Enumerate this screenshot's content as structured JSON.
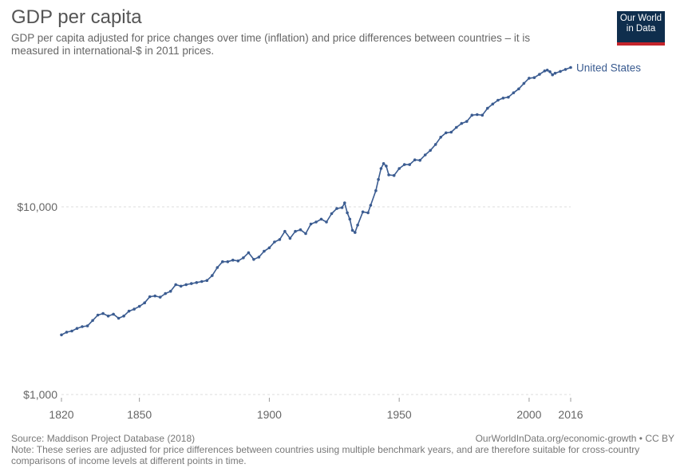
{
  "header": {
    "title": "GDP per capita",
    "subtitle": "GDP per capita adjusted for price changes over time (inflation) and price differences between countries – it is measured in international-$ in 2011 prices."
  },
  "logo": {
    "line1": "Our World",
    "line2": "in Data",
    "bg_color": "#0f2e4d",
    "accent_color": "#c4242b"
  },
  "footer": {
    "source": "Source: Maddison Project Database (2018)",
    "link": "OurWorldInData.org/economic-growth • CC BY",
    "note": "Note: These series are adjusted for price differences between countries using multiple benchmark years, and are therefore suitable for cross-country comparisons of income levels at different points in time."
  },
  "chart_data": {
    "type": "line",
    "title": "GDP per capita",
    "xlabel": "",
    "ylabel": "",
    "yscale": "log",
    "xlim": [
      1820,
      2016
    ],
    "ylim": [
      1000,
      60000
    ],
    "x_ticks": [
      1820,
      1850,
      1900,
      1950,
      2000,
      2016
    ],
    "x_tick_labels": [
      "1820",
      "1850",
      "1900",
      "1950",
      "2000",
      "2016"
    ],
    "y_ticks": [
      1000,
      10000
    ],
    "y_tick_labels": [
      "$1,000",
      "$10,000"
    ],
    "grid": "horizontal-dashed",
    "series": [
      {
        "name": "United States",
        "color": "#3b5c91",
        "points": [
          [
            1820,
            2080
          ],
          [
            1822,
            2150
          ],
          [
            1824,
            2180
          ],
          [
            1826,
            2250
          ],
          [
            1828,
            2300
          ],
          [
            1830,
            2320
          ],
          [
            1832,
            2480
          ],
          [
            1834,
            2650
          ],
          [
            1836,
            2700
          ],
          [
            1838,
            2620
          ],
          [
            1840,
            2680
          ],
          [
            1842,
            2550
          ],
          [
            1844,
            2620
          ],
          [
            1846,
            2780
          ],
          [
            1848,
            2850
          ],
          [
            1850,
            2950
          ],
          [
            1852,
            3080
          ],
          [
            1854,
            3320
          ],
          [
            1856,
            3350
          ],
          [
            1858,
            3300
          ],
          [
            1860,
            3450
          ],
          [
            1862,
            3550
          ],
          [
            1864,
            3850
          ],
          [
            1866,
            3780
          ],
          [
            1868,
            3850
          ],
          [
            1870,
            3900
          ],
          [
            1872,
            3950
          ],
          [
            1874,
            4000
          ],
          [
            1876,
            4050
          ],
          [
            1878,
            4300
          ],
          [
            1880,
            4750
          ],
          [
            1882,
            5100
          ],
          [
            1884,
            5100
          ],
          [
            1886,
            5200
          ],
          [
            1888,
            5150
          ],
          [
            1890,
            5350
          ],
          [
            1892,
            5700
          ],
          [
            1894,
            5250
          ],
          [
            1896,
            5400
          ],
          [
            1898,
            5800
          ],
          [
            1900,
            6050
          ],
          [
            1902,
            6500
          ],
          [
            1904,
            6700
          ],
          [
            1906,
            7400
          ],
          [
            1908,
            6800
          ],
          [
            1910,
            7400
          ],
          [
            1912,
            7550
          ],
          [
            1914,
            7200
          ],
          [
            1916,
            8100
          ],
          [
            1918,
            8300
          ],
          [
            1920,
            8600
          ],
          [
            1922,
            8300
          ],
          [
            1924,
            9200
          ],
          [
            1926,
            9800
          ],
          [
            1928,
            9900
          ],
          [
            1929,
            10500
          ],
          [
            1930,
            9300
          ],
          [
            1931,
            8600
          ],
          [
            1932,
            7500
          ],
          [
            1933,
            7300
          ],
          [
            1934,
            8000
          ],
          [
            1936,
            9400
          ],
          [
            1938,
            9300
          ],
          [
            1939,
            10200
          ],
          [
            1941,
            12200
          ],
          [
            1942,
            14000
          ],
          [
            1943,
            16000
          ],
          [
            1944,
            17000
          ],
          [
            1945,
            16500
          ],
          [
            1946,
            14800
          ],
          [
            1948,
            14700
          ],
          [
            1950,
            16000
          ],
          [
            1952,
            16800
          ],
          [
            1954,
            16800
          ],
          [
            1956,
            17800
          ],
          [
            1958,
            17700
          ],
          [
            1960,
            18900
          ],
          [
            1962,
            20000
          ],
          [
            1964,
            21500
          ],
          [
            1966,
            23500
          ],
          [
            1968,
            24800
          ],
          [
            1970,
            25000
          ],
          [
            1972,
            26500
          ],
          [
            1974,
            27800
          ],
          [
            1976,
            28500
          ],
          [
            1978,
            30800
          ],
          [
            1980,
            31000
          ],
          [
            1982,
            30800
          ],
          [
            1984,
            33500
          ],
          [
            1986,
            35300
          ],
          [
            1988,
            37000
          ],
          [
            1990,
            38000
          ],
          [
            1992,
            38400
          ],
          [
            1994,
            40500
          ],
          [
            1996,
            42500
          ],
          [
            1998,
            45500
          ],
          [
            2000,
            48500
          ],
          [
            2002,
            48800
          ],
          [
            2004,
            50800
          ],
          [
            2006,
            53000
          ],
          [
            2007,
            53500
          ],
          [
            2008,
            52500
          ],
          [
            2009,
            50500
          ],
          [
            2010,
            51500
          ],
          [
            2012,
            52700
          ],
          [
            2014,
            54000
          ],
          [
            2016,
            55300
          ]
        ]
      }
    ]
  }
}
